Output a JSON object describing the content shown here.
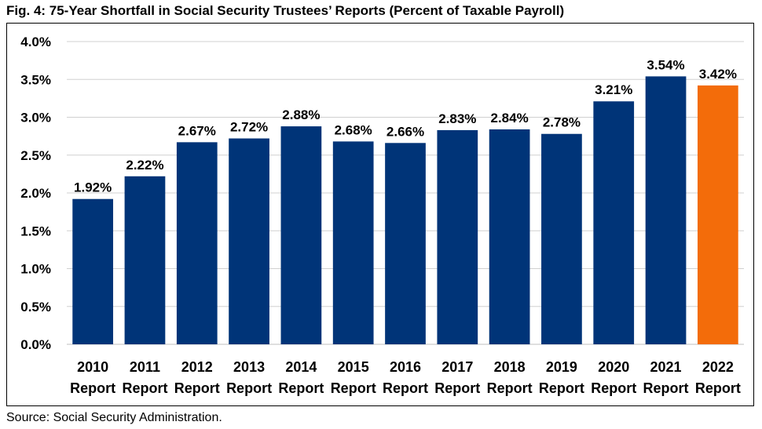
{
  "title": "Fig. 4: 75-Year Shortfall in Social Security Trustees’ Reports (Percent of Taxable Payroll)",
  "source": "Source: Social Security Administration.",
  "colors": {
    "primary_bar": "#003478",
    "highlight_bar": "#F36C0A",
    "grid": "#d0d0d0"
  },
  "chart_data": {
    "type": "bar",
    "title": "Fig. 4: 75-Year Shortfall in Social Security Trustees’ Reports (Percent of Taxable Payroll)",
    "xlabel": "",
    "ylabel": "",
    "ylim": [
      0,
      4.0
    ],
    "y_ticks": [
      "0.0%",
      "0.5%",
      "1.0%",
      "1.5%",
      "2.0%",
      "2.5%",
      "3.0%",
      "3.5%",
      "4.0%"
    ],
    "grid": true,
    "categories": [
      [
        "2010",
        "Report"
      ],
      [
        "2011",
        "Report"
      ],
      [
        "2012",
        "Report"
      ],
      [
        "2013",
        "Report"
      ],
      [
        "2014",
        "Report"
      ],
      [
        "2015",
        "Report"
      ],
      [
        "2016",
        "Report"
      ],
      [
        "2017",
        "Report"
      ],
      [
        "2018",
        "Report"
      ],
      [
        "2019",
        "Report"
      ],
      [
        "2020",
        "Report"
      ],
      [
        "2021",
        "Report"
      ],
      [
        "2022",
        "Report"
      ]
    ],
    "values": [
      1.92,
      2.22,
      2.67,
      2.72,
      2.88,
      2.68,
      2.66,
      2.83,
      2.84,
      2.78,
      3.21,
      3.54,
      3.42
    ],
    "data_labels": [
      "1.92%",
      "2.22%",
      "2.67%",
      "2.72%",
      "2.88%",
      "2.68%",
      "2.66%",
      "2.83%",
      "2.84%",
      "2.78%",
      "3.21%",
      "3.54%",
      "3.42%"
    ],
    "highlight_index": 12
  }
}
